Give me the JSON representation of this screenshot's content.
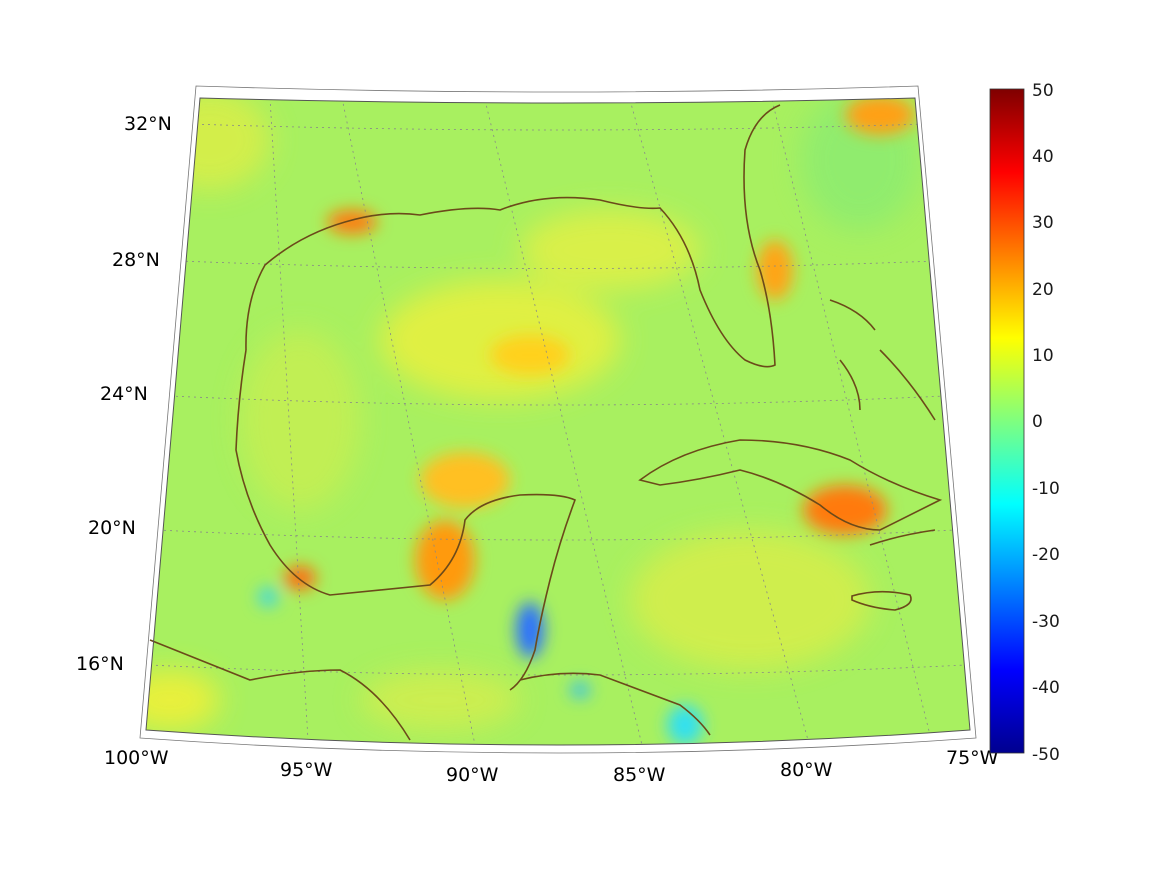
{
  "map": {
    "projection": "conic",
    "lon_range": [
      -100,
      -75
    ],
    "lat_range": [
      14,
      33
    ],
    "lat_labels": [
      "32°N",
      "28°N",
      "24°N",
      "20°N",
      "16°N"
    ],
    "lon_labels": [
      "100°W",
      "95°W",
      "90°W",
      "85°W",
      "80°W",
      "75°W"
    ],
    "coastline_color": "#6b4a1a",
    "gridline_style": "dotted",
    "field_description_colors": {
      "background": "#9fef5f",
      "positive_high": "#ff7f00",
      "negative_low": "#0060ff"
    }
  },
  "colorbar": {
    "min": -50,
    "max": 50,
    "colormap": "jet",
    "tick_labels": [
      "50",
      "40",
      "30",
      "20",
      "10",
      "0",
      "-10",
      "-20",
      "-30",
      "-40",
      "-50"
    ]
  }
}
